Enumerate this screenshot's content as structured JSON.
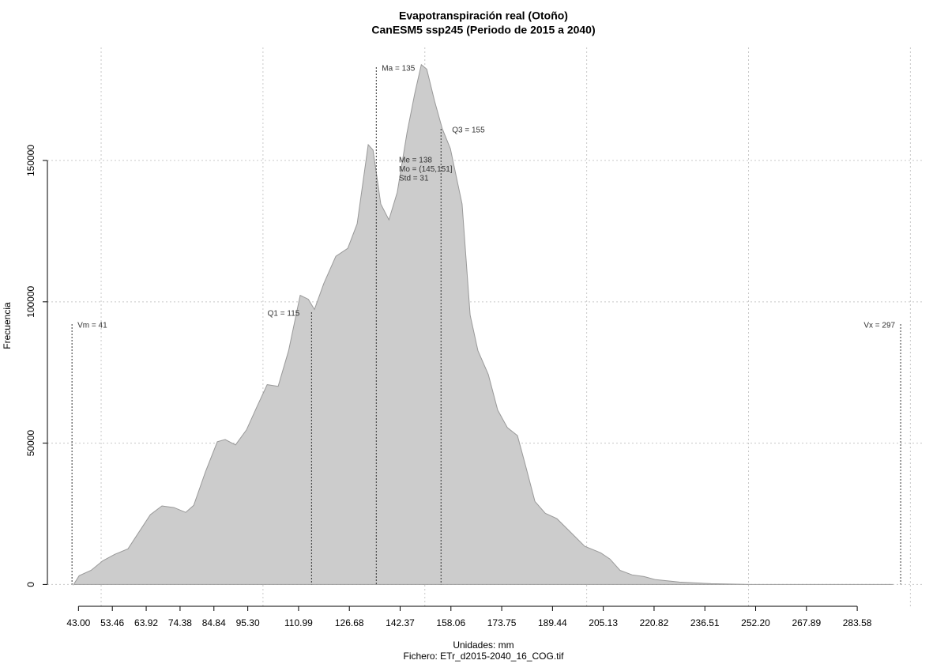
{
  "chart_data": {
    "type": "area",
    "title": "Evapotranspiración real (Otoño)",
    "subtitle": "CanESM5 ssp245 (Periodo de 2015 a 2040)",
    "x_label": "Unidades: mm",
    "caption": "Fichero: ETr_d2015-2040_16_COG.tif",
    "y_label": "Frecuencia",
    "color": "#cccccc",
    "x": [
      41.5,
      43.2,
      46.9,
      50.5,
      54.2,
      58.3,
      61.5,
      65.2,
      68.8,
      72.5,
      76.1,
      78.6,
      82.2,
      85.9,
      88.3,
      91.5,
      94.9,
      98.1,
      101.3,
      104.7,
      107.9,
      111.5,
      114.0,
      115.9,
      118.8,
      122.5,
      126.2,
      129.1,
      132.5,
      134.0,
      136.4,
      138.9,
      141.5,
      144.5,
      146.9,
      148.9,
      150.6,
      153.0,
      155.4,
      157.9,
      161.5,
      164.0,
      166.4,
      169.6,
      172.5,
      175.5,
      178.6,
      181.1,
      184.0,
      187.2,
      190.8,
      194.5,
      199.4,
      204.3,
      207.2,
      210.3,
      214.0,
      217.7,
      221.3,
      228.7,
      238.4,
      250.6,
      294.5
    ],
    "values": [
      0,
      3100,
      5000,
      8400,
      10650,
      12600,
      18200,
      24700,
      27800,
      27200,
      25500,
      28000,
      39800,
      50500,
      51300,
      49400,
      54700,
      62800,
      70700,
      70100,
      82700,
      102300,
      100900,
      97300,
      106500,
      116100,
      118900,
      127600,
      155600,
      153700,
      134600,
      129000,
      138800,
      159800,
      173800,
      183900,
      182300,
      171000,
      161200,
      154200,
      134600,
      95300,
      82700,
      74300,
      61700,
      55500,
      52700,
      42100,
      29400,
      25200,
      23300,
      19100,
      13500,
      11200,
      9000,
      5000,
      3400,
      2800,
      1700,
      840,
      280,
      0,
      0
    ],
    "xlim": [
      33.4,
      304.3
    ],
    "ylim": [
      -8000,
      190000
    ],
    "xticks": [
      {
        "value": 43,
        "label": "43.00"
      },
      {
        "value": 53.46,
        "label": "53.46"
      },
      {
        "value": 63.92,
        "label": "63.92"
      },
      {
        "value": 74.38,
        "label": "74.38"
      },
      {
        "value": 84.84,
        "label": "84.84"
      },
      {
        "value": 95.3,
        "label": "95.30"
      },
      {
        "value": 110.99,
        "label": "110.99"
      },
      {
        "value": 126.68,
        "label": "126.68"
      },
      {
        "value": 142.37,
        "label": "142.37"
      },
      {
        "value": 158.06,
        "label": "158.06"
      },
      {
        "value": 173.75,
        "label": "173.75"
      },
      {
        "value": 189.44,
        "label": "189.44"
      },
      {
        "value": 205.13,
        "label": "205.13"
      },
      {
        "value": 220.82,
        "label": "220.82"
      },
      {
        "value": 236.51,
        "label": "236.51"
      },
      {
        "value": 252.2,
        "label": "252.20"
      },
      {
        "value": 267.89,
        "label": "267.89"
      },
      {
        "value": 283.58,
        "label": "283.58"
      }
    ],
    "xgrid": [
      50,
      100,
      150,
      200,
      250,
      300
    ],
    "yticks": [
      0,
      50000,
      100000,
      150000
    ],
    "grid": true,
    "annotations": [
      {
        "text": "Vm = 41",
        "x": 41
      },
      {
        "text": "Q1 = 115",
        "x": 115
      },
      {
        "text": "Ma = 135",
        "x": 135
      },
      {
        "text": "Q3 = 155",
        "x": 155
      },
      {
        "text": "Vx = 297",
        "x": 297
      }
    ],
    "stats": [
      "Me = 138",
      "Mo = (145,151]",
      "Std = 31"
    ]
  }
}
